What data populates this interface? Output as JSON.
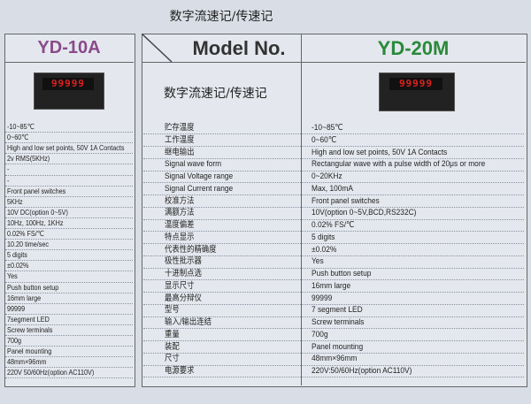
{
  "title": "数字流速记/传速记",
  "left": {
    "model": "YD-10A",
    "display": "99999",
    "rows": [
      "-10~85℃",
      "0~60℃",
      "High and low set points, 50V 1A Contacts",
      "2v RMS(5KHz)",
      "-",
      "-",
      "Front panel switches",
      "5KHz",
      "10V DC(option 0~5V)",
      "10Hz, 100Hz, 1KHz",
      "0.02% FS/℃",
      "10.20 time/sec",
      "5 digits",
      "±0.02%",
      "Yes",
      "Push button setup",
      "16mm large",
      "99999",
      "7segment LED",
      "Screw terminals",
      "700g",
      "Panel mounting",
      "48mm×96mm",
      "220V 50/60Hz(option AC110V)"
    ]
  },
  "right": {
    "header": "Model No.",
    "model": "YD-20M",
    "subtitle": "数字流速记/传速记",
    "display": "99999",
    "rows": [
      {
        "label": "贮存温度",
        "value": "-10~85℃"
      },
      {
        "label": "工作温度",
        "value": "0~60℃"
      },
      {
        "label": "继电输出",
        "value": "High and low set points, 50V 1A Contacts"
      },
      {
        "label": "Signal wave form",
        "value": "Rectangular wave with a pulse width of 20μs or more"
      },
      {
        "label": "Signal Voltage range",
        "value": "0~20KHz"
      },
      {
        "label": "Signal Current range",
        "value": "Max, 100mA"
      },
      {
        "label": "校准方法",
        "value": "Front panel switches"
      },
      {
        "label": "满额方法",
        "value": "10V(option 0~5V,BCD,RS232C)"
      },
      {
        "label": "温度偏差",
        "value": "0.02% FS/℃"
      },
      {
        "label": "特点显示",
        "value": "5 digits"
      },
      {
        "label": "代表性的精确度",
        "value": "±0.02%"
      },
      {
        "label": "极性批示器",
        "value": "Yes"
      },
      {
        "label": "十进制点选",
        "value": "Push button setup"
      },
      {
        "label": "显示尺寸",
        "value": "16mm large"
      },
      {
        "label": "最高分辩仪",
        "value": "99999"
      },
      {
        "label": "型号",
        "value": "7 segment LED"
      },
      {
        "label": "输入/输出连结",
        "value": "Screw terminals"
      },
      {
        "label": "重量",
        "value": "700g"
      },
      {
        "label": "装配",
        "value": "Panel mounting"
      },
      {
        "label": "尺寸",
        "value": "48mm×96mm"
      },
      {
        "label": "电源要求",
        "value": "220V:50/60Hz(option AC110V)"
      }
    ]
  }
}
